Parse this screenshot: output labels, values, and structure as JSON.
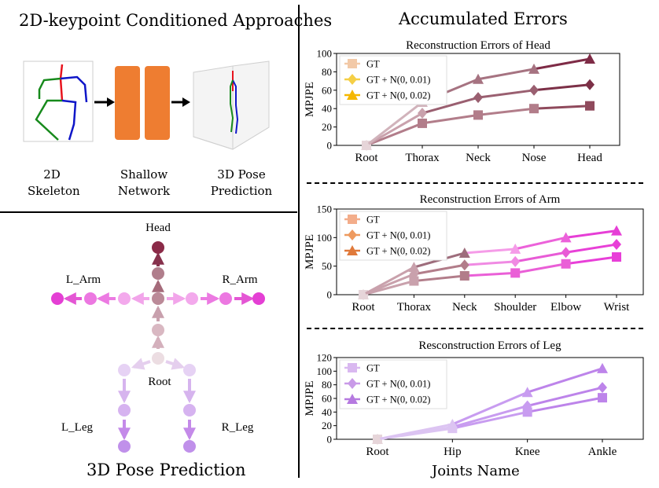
{
  "pipeline": {
    "title": "2D-keypoint Conditioned Approaches",
    "stage1": [
      "2D",
      "Skeleton"
    ],
    "stage2": [
      "Shallow",
      "Network"
    ],
    "stage3": [
      "3D Pose",
      "Prediction"
    ],
    "colors": {
      "network": "#ee7d31",
      "spine": "#e8141e",
      "left": "#178a1c",
      "right": "#0f16c8"
    }
  },
  "pose": {
    "title": "3D Pose Prediction",
    "labels": {
      "head": "Head",
      "l_arm": "L_Arm",
      "r_arm": "R_Arm",
      "root": "Root",
      "l_leg": "L_Leg",
      "r_leg": "R_Leg"
    }
  },
  "errors": {
    "title": "Accumulated Errors",
    "xlabel": "Joints Name"
  },
  "chart_data": [
    {
      "type": "line",
      "title": "Reconstruction Errors of Head",
      "ylabel": "MPJPE",
      "categories": [
        "Root",
        "Thorax",
        "Neck",
        "Nose",
        "Head"
      ],
      "ylim": [
        0,
        100
      ],
      "yticks": [
        0,
        20,
        40,
        60,
        80,
        100
      ],
      "legend_position": "top-left",
      "legend_marker_colors": [
        "#f2c9a7",
        "#f5cf46",
        "#f5b700"
      ],
      "series": [
        {
          "name": "GT",
          "marker": "square",
          "values": [
            0,
            24,
            33,
            40,
            43
          ],
          "colors": [
            "#e6d5d9",
            "#b27d8a",
            "#b27d8a",
            "#b27d8a",
            "#8f4a5c"
          ]
        },
        {
          "name": "GT + N(0, 0.01)",
          "marker": "diamond",
          "values": [
            0,
            35,
            52,
            60,
            66
          ],
          "colors": [
            "#e6d5d9",
            "#c9a1ac",
            "#9a5f70",
            "#9a5f70",
            "#7c3047"
          ]
        },
        {
          "name": "GT + N(0, 0.02)",
          "marker": "triangle",
          "values": [
            0,
            47,
            72,
            83,
            94
          ],
          "colors": [
            "#e6d5d9",
            "#d1b3bb",
            "#a67381",
            "#a67381",
            "#7e2b46"
          ]
        }
      ]
    },
    {
      "type": "line",
      "title": "Reconstruction Errors of Arm",
      "ylabel": "MPJPE",
      "categories": [
        "Root",
        "Thorax",
        "Neck",
        "Shoulder",
        "Elbow",
        "Wrist"
      ],
      "ylim": [
        0,
        150
      ],
      "yticks": [
        0,
        50,
        100,
        150
      ],
      "legend_position": "top-left",
      "legend_marker_colors": [
        "#f3ad8a",
        "#ee9a5f",
        "#e07a3b"
      ],
      "series": [
        {
          "name": "GT",
          "marker": "square",
          "values": [
            0,
            24,
            33,
            38,
            54,
            66
          ],
          "colors": [
            "#e6d5d9",
            "#c9a1ac",
            "#b27d8a",
            "#ea5fd7",
            "#ea5fd7",
            "#e83fd8"
          ]
        },
        {
          "name": "GT + N(0, 0.01)",
          "marker": "diamond",
          "values": [
            0,
            36,
            52,
            58,
            74,
            88
          ],
          "colors": [
            "#e6d5d9",
            "#c9a1ac",
            "#b27d8a",
            "#f08ae3",
            "#e85bd6",
            "#e840d7"
          ]
        },
        {
          "name": "GT + N(0, 0.02)",
          "marker": "triangle",
          "values": [
            0,
            48,
            73,
            80,
            100,
            112
          ],
          "colors": [
            "#e6d5d9",
            "#c9a1ac",
            "#9e6d7c",
            "#f59ce8",
            "#ec62da",
            "#e63ed6"
          ]
        }
      ]
    },
    {
      "type": "line",
      "title": "Resconstruction Errors of Leg",
      "ylabel": "MPJPE",
      "categories": [
        "Root",
        "Hip",
        "Knee",
        "Ankle"
      ],
      "ylim": [
        0,
        120
      ],
      "yticks": [
        0,
        20,
        40,
        60,
        80,
        100,
        120
      ],
      "legend_position": "top-left",
      "legend_marker_colors": [
        "#d9b8f0",
        "#c99ae8",
        "#b67ae0"
      ],
      "series": [
        {
          "name": "GT",
          "marker": "square",
          "values": [
            0,
            16,
            40,
            61
          ],
          "colors": [
            "#e6d5d9",
            "#dcc4f2",
            "#c89cf0",
            "#bd84ea"
          ]
        },
        {
          "name": "GT + N(0, 0.01)",
          "marker": "diamond",
          "values": [
            0,
            18,
            49,
            76
          ],
          "colors": [
            "#e6d5d9",
            "#dcc4f2",
            "#c89cf0",
            "#bd84ea"
          ]
        },
        {
          "name": "GT + N(0, 0.02)",
          "marker": "triangle",
          "values": [
            0,
            22,
            69,
            104
          ],
          "colors": [
            "#e6d5d9",
            "#dcc4f2",
            "#c89cf0",
            "#bd84ea"
          ]
        }
      ]
    }
  ]
}
